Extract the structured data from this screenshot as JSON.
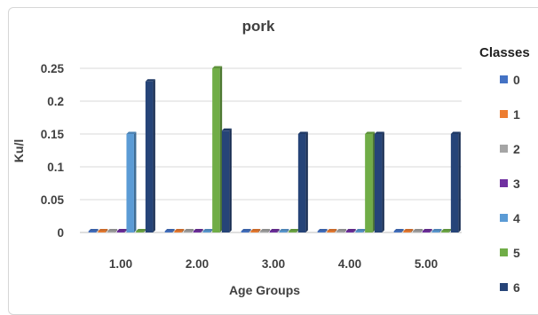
{
  "chart_data": {
    "type": "bar",
    "title": "pork",
    "xlabel": "Age Groups",
    "ylabel": "Ku/l",
    "categories": [
      "1.00",
      "2.00",
      "3.00",
      "4.00",
      "5.00"
    ],
    "ylim": [
      0,
      0.25
    ],
    "yticks": [
      0,
      0.05,
      0.1,
      0.15,
      0.2,
      0.25
    ],
    "ytick_labels": [
      "0",
      "0.05",
      "0.1",
      "0.15",
      "0.2",
      "0.25"
    ],
    "grid": true,
    "legend_position": "right",
    "legend_title": "Classes",
    "series": [
      {
        "name": "0",
        "color": "#4472c4",
        "values": [
          0,
          0,
          0,
          0,
          0
        ]
      },
      {
        "name": "1",
        "color": "#ed7d31",
        "values": [
          0,
          0,
          0,
          0,
          0
        ]
      },
      {
        "name": "2",
        "color": "#a5a5a5",
        "values": [
          0,
          0,
          0,
          0,
          0
        ]
      },
      {
        "name": "3",
        "color": "#7030a0",
        "values": [
          0,
          0,
          0,
          0,
          0
        ]
      },
      {
        "name": "4",
        "color": "#5b9bd5",
        "values": [
          0.15,
          0,
          0,
          0,
          0
        ]
      },
      {
        "name": "5",
        "color": "#70ad47",
        "values": [
          0,
          0.25,
          0,
          0.15,
          0
        ]
      },
      {
        "name": "6",
        "color": "#264478",
        "values": [
          0.23,
          0.155,
          0.15,
          0.15,
          0.15
        ]
      }
    ]
  }
}
